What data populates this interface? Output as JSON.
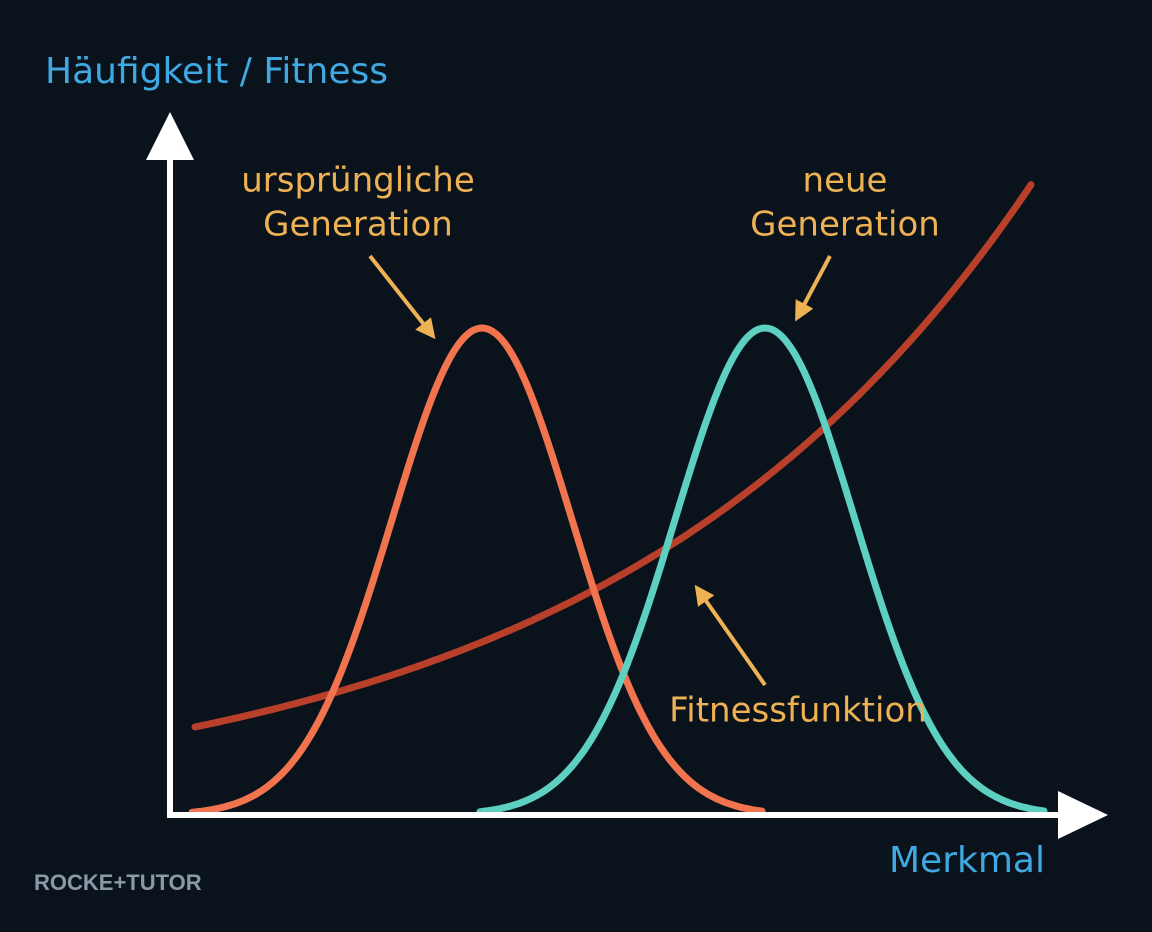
{
  "axes": {
    "y_label": "Häufigkeit / Fitness",
    "x_label": "Merkmal"
  },
  "annotations": {
    "original": [
      "ursprüngliche",
      "Generation"
    ],
    "new": [
      "neue",
      "Generation"
    ],
    "fitness": "Fitnessfunktion"
  },
  "logo": "ROCKE+TUTOR"
}
